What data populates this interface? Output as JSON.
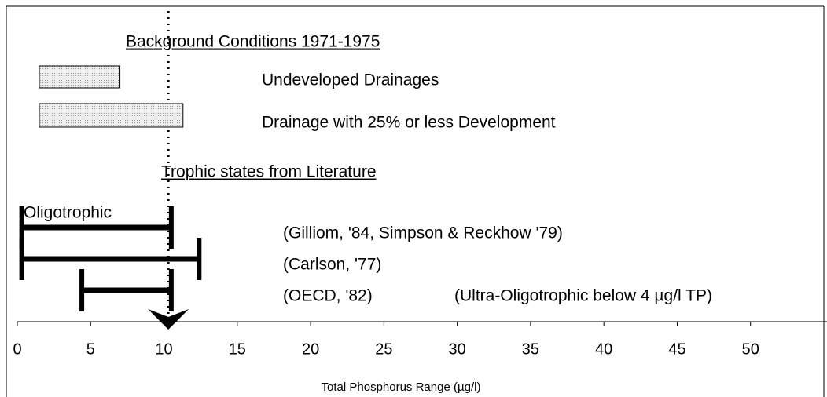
{
  "chart_data": {
    "type": "range",
    "headings": [
      "Background Conditions  1971-1975",
      "Trophic states from Literature"
    ],
    "group_label": "Oligotrophic",
    "note": "(Ultra-Oligotrophic below 4 µg/l TP)",
    "xlabel": "Total Phosphorus Range (µg/l)",
    "xlim": [
      0,
      55
    ],
    "xticks": [
      0,
      5,
      10,
      15,
      20,
      25,
      30,
      35,
      40,
      45,
      50
    ],
    "reference_line": 10.3,
    "series": [
      {
        "name": "Undeveloped Drainages",
        "style": "box",
        "color": "#d9d9d9",
        "values": [
          1.5,
          7.0
        ]
      },
      {
        "name": "Drainage with 25% or less Development",
        "style": "box",
        "color": "#d9d9d9",
        "values": [
          1.5,
          11.3
        ]
      },
      {
        "name": "(Gilliom, '84, Simpson & Reckhow '79)",
        "style": "bracket",
        "color": "#000000",
        "values": [
          0.3,
          10.5
        ]
      },
      {
        "name": "(Carlson, '77)",
        "style": "bracket",
        "color": "#000000",
        "values": [
          0.3,
          12.4
        ]
      },
      {
        "name": "(OECD, '82)",
        "style": "bracket",
        "color": "#000000",
        "values": [
          4.4,
          10.5
        ]
      }
    ]
  }
}
